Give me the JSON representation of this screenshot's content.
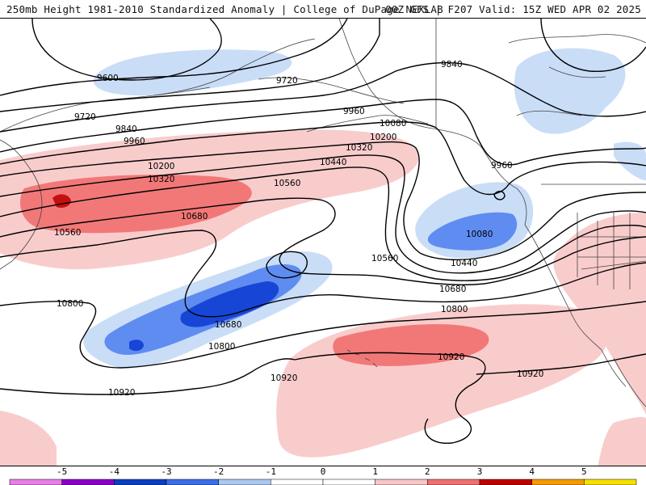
{
  "header": {
    "title_left": "250mb Height 1981-2010 Standardized Anomaly | College of DuPage NEXLAB",
    "title_right": "00Z GFS | F207 Valid: 15Z WED APR 02 2025"
  },
  "contour_labels": [
    {
      "text": "9600"
    },
    {
      "text": "9720"
    },
    {
      "text": "9720"
    },
    {
      "text": "9840"
    },
    {
      "text": "9840"
    },
    {
      "text": "9960"
    },
    {
      "text": "9960"
    },
    {
      "text": "9960"
    },
    {
      "text": "10080"
    },
    {
      "text": "10080"
    },
    {
      "text": "10200"
    },
    {
      "text": "10200"
    },
    {
      "text": "10320"
    },
    {
      "text": "10320"
    },
    {
      "text": "10440"
    },
    {
      "text": "10440"
    },
    {
      "text": "10560"
    },
    {
      "text": "10560"
    },
    {
      "text": "10560"
    },
    {
      "text": "10680"
    },
    {
      "text": "10680"
    },
    {
      "text": "10680"
    },
    {
      "text": "10800"
    },
    {
      "text": "10800"
    },
    {
      "text": "10800"
    },
    {
      "text": "10920"
    },
    {
      "text": "10920"
    },
    {
      "text": "10920"
    },
    {
      "text": "10920"
    }
  ],
  "colorbar": {
    "labels": [
      "-5",
      "-4",
      "-3",
      "-2",
      "-1",
      "0",
      "1",
      "2",
      "3",
      "4",
      "5"
    ],
    "colors": [
      "#e87fe8",
      "#8b00c8",
      "#0a3fc0",
      "#3a6ee8",
      "#aac8f0",
      "#ffffff",
      "#ffffff",
      "#f8c6c6",
      "#f07070",
      "#c00000",
      "#f59a00",
      "#f5e000"
    ]
  },
  "colors": {
    "neg1": "#c9ddf7",
    "neg2": "#5f8cf0",
    "neg3": "#1746d6",
    "pos1": "#f9cccc",
    "pos2": "#f27878",
    "pos3": "#c41010"
  }
}
